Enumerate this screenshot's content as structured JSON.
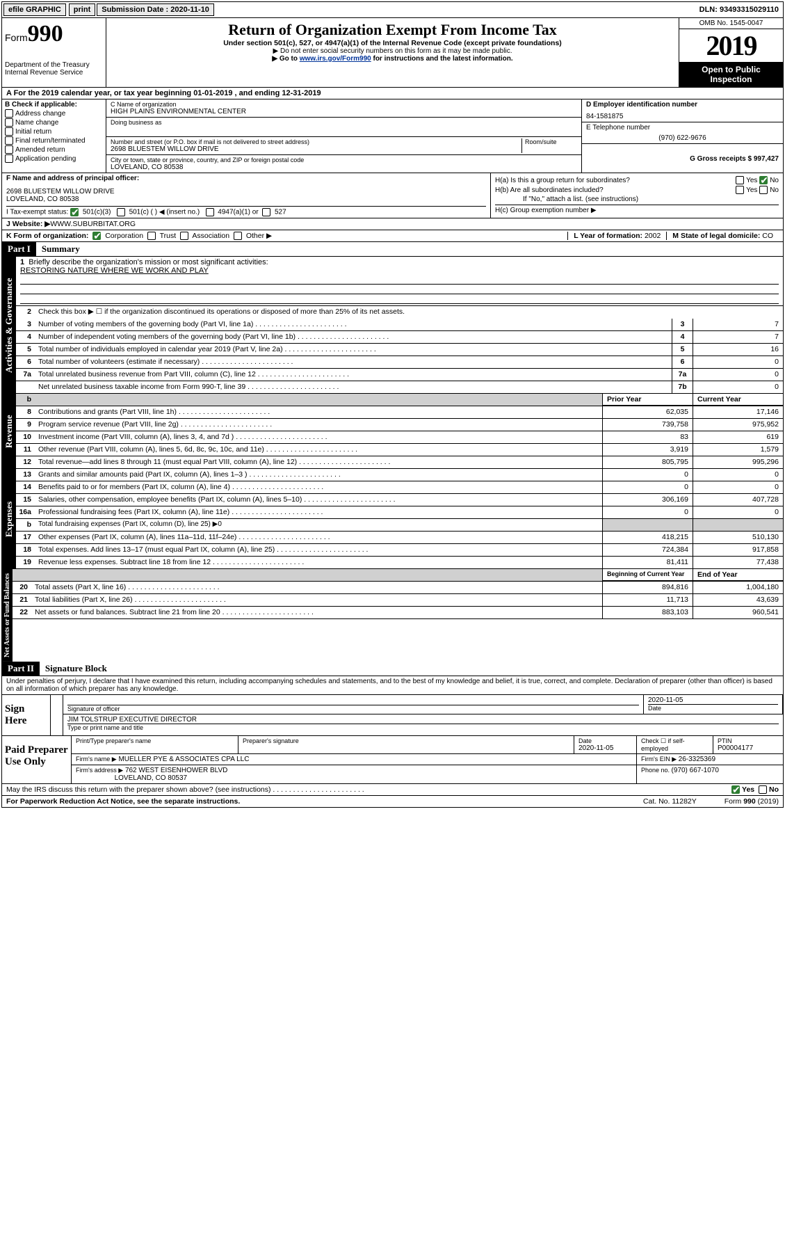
{
  "topbar": {
    "efile": "efile GRAPHIC",
    "print": "print",
    "sub_label": "Submission Date : 2020-11-10",
    "dln": "DLN: 93493315029110"
  },
  "header": {
    "form_word": "Form",
    "form_num": "990",
    "dept": "Department of the Treasury",
    "irs": "Internal Revenue Service",
    "title": "Return of Organization Exempt From Income Tax",
    "subtitle": "Under section 501(c), 527, or 4947(a)(1) of the Internal Revenue Code (except private foundations)",
    "note1": "▶ Do not enter social security numbers on this form as it may be made public.",
    "note2_pre": "▶ Go to ",
    "note2_link": "www.irs.gov/Form990",
    "note2_post": " for instructions and the latest information.",
    "omb": "OMB No. 1545-0047",
    "year": "2019",
    "open": "Open to Public Inspection"
  },
  "row_a": "A For the 2019 calendar year, or tax year beginning 01-01-2019   , and ending 12-31-2019",
  "col_b": {
    "hdr": "B Check if applicable:",
    "items": [
      "Address change",
      "Name change",
      "Initial return",
      "Final return/terminated",
      "Amended return",
      "Application pending"
    ]
  },
  "col_c": {
    "name_lbl": "C Name of organization",
    "name": "HIGH PLAINS ENVIRONMENTAL CENTER",
    "dba_lbl": "Doing business as",
    "dba": "",
    "addr_lbl": "Number and street (or P.O. box if mail is not delivered to street address)",
    "room_lbl": "Room/suite",
    "addr": "2698 BLUESTEM WILLOW DRIVE",
    "city_lbl": "City or town, state or province, country, and ZIP or foreign postal code",
    "city": "LOVELAND, CO  80538"
  },
  "col_d": {
    "lbl": "D Employer identification number",
    "val": "84-1581875"
  },
  "col_e": {
    "lbl": "E Telephone number",
    "val": "(970) 622-9676"
  },
  "col_g": {
    "lbl": "G Gross receipts $ ",
    "val": "997,427"
  },
  "col_f": {
    "lbl": "F  Name and address of principal officer:",
    "line1": "2698 BLUESTEM WILLOW DRIVE",
    "line2": "LOVELAND, CO  80538"
  },
  "col_h": {
    "a_lbl": "H(a)  Is this a group return for subordinates?",
    "b_lbl": "H(b)  Are all subordinates included?",
    "if_no": "If \"No,\" attach a list. (see instructions)",
    "c_lbl": "H(c)  Group exemption number ▶",
    "yes": "Yes",
    "no": "No"
  },
  "row_i": {
    "lbl": "I    Tax-exempt status:",
    "opts": [
      "501(c)(3)",
      "501(c) (  ) ◀ (insert no.)",
      "4947(a)(1) or",
      "527"
    ]
  },
  "row_j": {
    "lbl": "J   Website: ▶",
    "val": "  WWW.SUBURBITAT.ORG"
  },
  "row_k": {
    "lbl": "K Form of organization:",
    "opts": [
      "Corporation",
      "Trust",
      "Association",
      "Other ▶"
    ],
    "l_lbl": "L Year of formation: ",
    "l_val": "2002",
    "m_lbl": "M State of legal domicile: ",
    "m_val": "CO"
  },
  "part1": {
    "hdr": "Part I",
    "title": "Summary",
    "tab1": "Activities & Governance",
    "line1_lbl": "Briefly describe the organization's mission or most significant activities:",
    "mission": "RESTORING NATURE WHERE WE WORK AND PLAY",
    "line2": "Check this box ▶ ☐  if the organization discontinued its operations or disposed of more than 25% of its net assets.",
    "lines_gov": [
      {
        "n": "3",
        "d": "Number of voting members of the governing body (Part VI, line 1a)",
        "b": "3",
        "v": "7"
      },
      {
        "n": "4",
        "d": "Number of independent voting members of the governing body (Part VI, line 1b)",
        "b": "4",
        "v": "7"
      },
      {
        "n": "5",
        "d": "Total number of individuals employed in calendar year 2019 (Part V, line 2a)",
        "b": "5",
        "v": "16"
      },
      {
        "n": "6",
        "d": "Total number of volunteers (estimate if necessary)",
        "b": "6",
        "v": "0"
      },
      {
        "n": "7a",
        "d": "Total unrelated business revenue from Part VIII, column (C), line 12",
        "b": "7a",
        "v": "0"
      },
      {
        "n": "",
        "d": "Net unrelated business taxable income from Form 990-T, line 39",
        "b": "7b",
        "v": "0"
      }
    ],
    "tab2": "Revenue",
    "pyr": "Prior Year",
    "cyr": "Current Year",
    "lines_rev": [
      {
        "n": "8",
        "d": "Contributions and grants (Part VIII, line 1h)",
        "p": "62,035",
        "c": "17,146"
      },
      {
        "n": "9",
        "d": "Program service revenue (Part VIII, line 2g)",
        "p": "739,758",
        "c": "975,952"
      },
      {
        "n": "10",
        "d": "Investment income (Part VIII, column (A), lines 3, 4, and 7d )",
        "p": "83",
        "c": "619"
      },
      {
        "n": "11",
        "d": "Other revenue (Part VIII, column (A), lines 5, 6d, 8c, 9c, 10c, and 11e)",
        "p": "3,919",
        "c": "1,579"
      },
      {
        "n": "12",
        "d": "Total revenue—add lines 8 through 11 (must equal Part VIII, column (A), line 12)",
        "p": "805,795",
        "c": "995,296"
      }
    ],
    "tab3": "Expenses",
    "lines_exp": [
      {
        "n": "13",
        "d": "Grants and similar amounts paid (Part IX, column (A), lines 1–3 )",
        "p": "0",
        "c": "0"
      },
      {
        "n": "14",
        "d": "Benefits paid to or for members (Part IX, column (A), line 4)",
        "p": "0",
        "c": "0"
      },
      {
        "n": "15",
        "d": "Salaries, other compensation, employee benefits (Part IX, column (A), lines 5–10)",
        "p": "306,169",
        "c": "407,728"
      },
      {
        "n": "16a",
        "d": "Professional fundraising fees (Part IX, column (A), line 11e)",
        "p": "0",
        "c": "0"
      }
    ],
    "line_b": {
      "n": "b",
      "d": "Total fundraising expenses (Part IX, column (D), line 25) ▶0"
    },
    "lines_exp2": [
      {
        "n": "17",
        "d": "Other expenses (Part IX, column (A), lines 11a–11d, 11f–24e)",
        "p": "418,215",
        "c": "510,130"
      },
      {
        "n": "18",
        "d": "Total expenses. Add lines 13–17 (must equal Part IX, column (A), line 25)",
        "p": "724,384",
        "c": "917,858"
      },
      {
        "n": "19",
        "d": "Revenue less expenses. Subtract line 18 from line 12",
        "p": "81,411",
        "c": "77,438"
      }
    ],
    "tab4": "Net Assets or Fund Balances",
    "bcy": "Beginning of Current Year",
    "eoy": "End of Year",
    "lines_net": [
      {
        "n": "20",
        "d": "Total assets (Part X, line 16)",
        "p": "894,816",
        "c": "1,004,180"
      },
      {
        "n": "21",
        "d": "Total liabilities (Part X, line 26)",
        "p": "11,713",
        "c": "43,639"
      },
      {
        "n": "22",
        "d": "Net assets or fund balances. Subtract line 21 from line 20",
        "p": "883,103",
        "c": "960,541"
      }
    ]
  },
  "part2": {
    "hdr": "Part II",
    "title": "Signature Block",
    "decl": "Under penalties of perjury, I declare that I have examined this return, including accompanying schedules and statements, and to the best of my knowledge and belief, it is true, correct, and complete. Declaration of preparer (other than officer) is based on all information of which preparer has any knowledge."
  },
  "sign": {
    "left": "Sign Here",
    "sig_lbl": "Signature of officer",
    "date_lbl": "Date",
    "date": "2020-11-05",
    "name": "JIM TOLSTRUP  EXECUTIVE DIRECTOR",
    "name_lbl": "Type or print name and title"
  },
  "prep": {
    "left": "Paid Preparer Use Only",
    "h1": "Print/Type preparer's name",
    "h2": "Preparer's signature",
    "h3": "Date",
    "h3v": "2020-11-05",
    "h4": "Check ☐ if self-employed",
    "h5": "PTIN",
    "h5v": "P00004177",
    "firm_lbl": "Firm's name    ▶",
    "firm": " MUELLER PYE & ASSOCIATES CPA LLC",
    "ein_lbl": "Firm's EIN ▶ ",
    "ein": "26-3325369",
    "addr_lbl": "Firm's address ▶",
    "addr1": "762 WEST EISENHOWER BLVD",
    "addr2": "LOVELAND, CO  80537",
    "phone_lbl": "Phone no. ",
    "phone": "(970) 667-1070"
  },
  "discuss": {
    "q": "May the IRS discuss this return with the preparer shown above? (see instructions)",
    "yes": "Yes",
    "no": "No"
  },
  "footer": {
    "left": "For Paperwork Reduction Act Notice, see the separate instructions.",
    "mid": "Cat. No. 11282Y",
    "right": "Form 990 (2019)"
  }
}
